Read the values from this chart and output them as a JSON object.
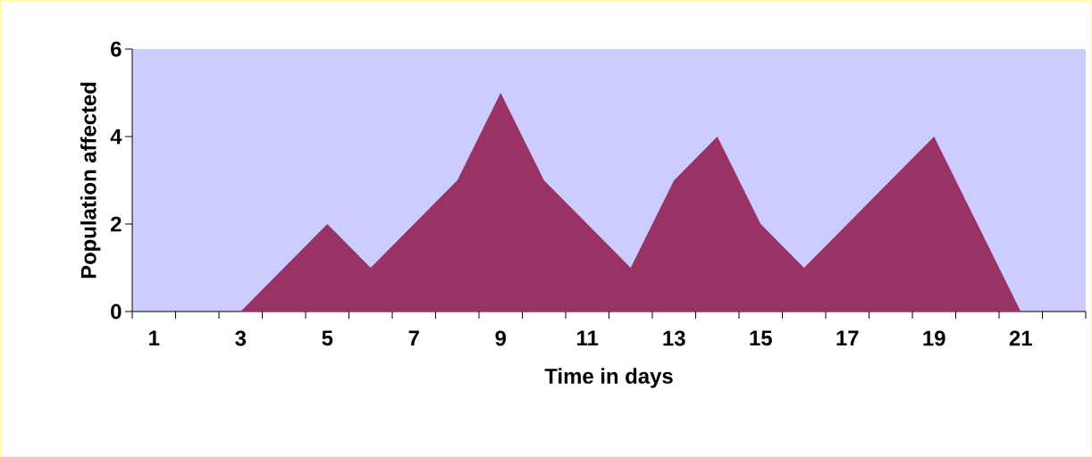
{
  "chart_data": {
    "type": "area",
    "xlabel": "Time in days",
    "ylabel": "Population affected",
    "categories": [
      "1",
      null,
      "3",
      null,
      "5",
      null,
      "7",
      null,
      "9",
      null,
      "11",
      null,
      "13",
      null,
      "15",
      null,
      "17",
      null,
      "19",
      null,
      "21",
      null
    ],
    "values": [
      0,
      0,
      0,
      1,
      2,
      1,
      2,
      3,
      5,
      3,
      2,
      1,
      3,
      4,
      2,
      1,
      2,
      3,
      4,
      2,
      0,
      0
    ],
    "color": "#993366",
    "ylim": [
      0,
      6
    ],
    "yticks": [
      0,
      2,
      4,
      6
    ]
  }
}
